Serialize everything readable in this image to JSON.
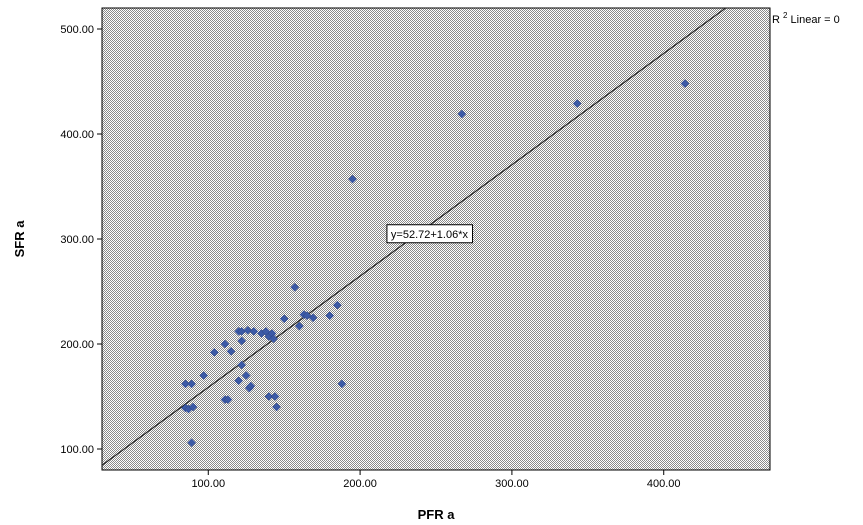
{
  "chart_data": {
    "type": "scatter",
    "xlabel": "PFR a",
    "ylabel": "SFR a",
    "xlim": [
      30,
      470
    ],
    "ylim": [
      80,
      520
    ],
    "xticks": [
      100,
      200,
      300,
      400
    ],
    "yticks": [
      100,
      200,
      300,
      400,
      500
    ],
    "x_tick_labels": [
      "100.00",
      "200.00",
      "300.00",
      "400.00"
    ],
    "y_tick_labels": [
      "100.00",
      "200.00",
      "300.00",
      "400.00",
      "500.00"
    ],
    "grid": false,
    "colors": {
      "point": "#3c5aa6",
      "fit_line": "#222222",
      "background": "#cfcfcf"
    },
    "series": [
      {
        "points": [
          [
            89,
            106
          ],
          [
            85,
            139
          ],
          [
            87,
            138
          ],
          [
            90,
            140
          ],
          [
            85,
            162
          ],
          [
            89,
            162
          ],
          [
            97,
            170
          ],
          [
            104,
            192
          ],
          [
            111,
            147
          ],
          [
            113,
            147
          ],
          [
            111,
            200
          ],
          [
            115,
            193
          ],
          [
            120,
            212
          ],
          [
            122,
            212
          ],
          [
            122,
            203
          ],
          [
            120,
            165
          ],
          [
            122,
            180
          ],
          [
            125,
            170
          ],
          [
            126,
            213
          ],
          [
            127,
            158
          ],
          [
            130,
            212
          ],
          [
            128,
            160
          ],
          [
            135,
            210
          ],
          [
            138,
            212
          ],
          [
            140,
            207
          ],
          [
            142,
            210
          ],
          [
            143,
            205
          ],
          [
            140,
            150
          ],
          [
            144,
            150
          ],
          [
            145,
            140
          ],
          [
            150,
            224
          ],
          [
            157,
            254
          ],
          [
            160,
            217
          ],
          [
            163,
            228
          ],
          [
            165,
            227
          ],
          [
            169,
            225
          ],
          [
            180,
            227
          ],
          [
            185,
            237
          ],
          [
            188,
            162
          ],
          [
            195,
            357
          ],
          [
            267,
            419
          ],
          [
            343,
            429
          ],
          [
            414,
            448
          ]
        ]
      }
    ],
    "fit_line": {
      "intercept": 52.72,
      "slope": 1.06,
      "label": "y=52.72+1.06*x",
      "label_at": [
        219,
        305
      ]
    },
    "legend": {
      "text": "R",
      "superscript": "2",
      "suffix": " Linear = 0",
      "placement": "top-right"
    }
  }
}
